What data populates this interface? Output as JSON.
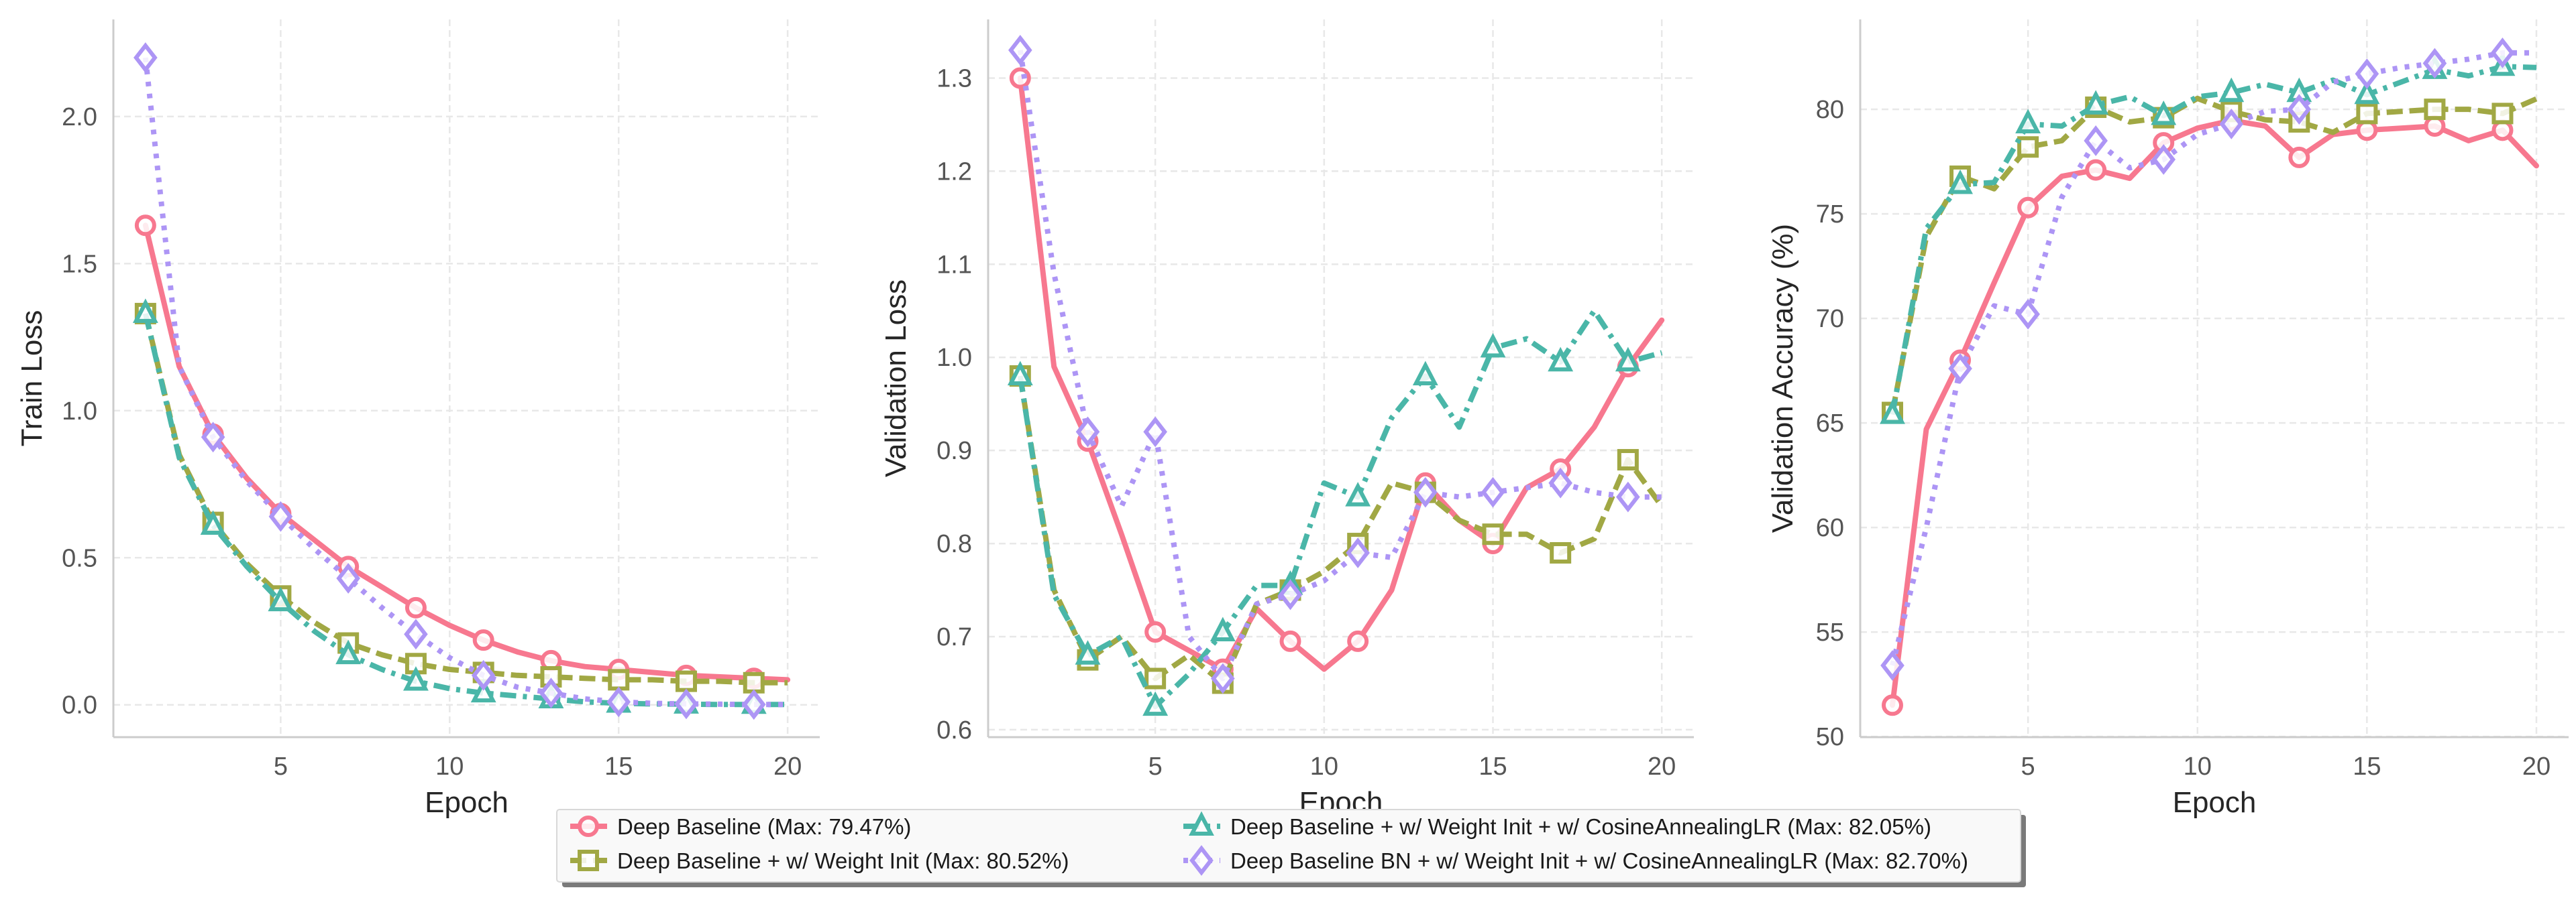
{
  "chart_data": [
    {
      "type": "line",
      "xlabel": "Epoch",
      "ylabel": "Train Loss",
      "xlim": [
        0.05,
        20.95
      ],
      "ylim": [
        -0.11,
        2.33
      ],
      "xticks": [
        5,
        10,
        15,
        20
      ],
      "yticks": [
        0.0,
        0.5,
        1.0,
        1.5,
        2.0
      ],
      "ytick_labels": [
        "0.0",
        "0.5",
        "1.0",
        "1.5",
        "2.0"
      ],
      "grid": true,
      "x": [
        1,
        2,
        3,
        4,
        5,
        6,
        7,
        8,
        9,
        10,
        11,
        12,
        13,
        14,
        15,
        16,
        17,
        18,
        19,
        20
      ],
      "series": [
        {
          "name": "Deep Baseline",
          "values": [
            1.63,
            1.15,
            0.92,
            0.77,
            0.65,
            0.56,
            0.47,
            0.4,
            0.33,
            0.27,
            0.22,
            0.18,
            0.15,
            0.13,
            0.12,
            0.11,
            0.1,
            0.095,
            0.09,
            0.085
          ]
        },
        {
          "name": "Deep Baseline + w/ Weight Init",
          "values": [
            1.33,
            0.85,
            0.62,
            0.48,
            0.37,
            0.28,
            0.21,
            0.17,
            0.14,
            0.12,
            0.11,
            0.1,
            0.095,
            0.09,
            0.085,
            0.085,
            0.08,
            0.08,
            0.075,
            0.075
          ]
        },
        {
          "name": "Deep Baseline + w/ Weight Init + w/ CosineAnnealingLR",
          "values": [
            1.33,
            0.84,
            0.61,
            0.47,
            0.35,
            0.25,
            0.17,
            0.12,
            0.08,
            0.055,
            0.04,
            0.03,
            0.02,
            0.01,
            0.005,
            0.003,
            0.002,
            0.001,
            0.001,
            0.001
          ]
        },
        {
          "name": "Deep Baseline BN + w/ Weight Init + w/ CosineAnnealingLR",
          "values": [
            2.2,
            1.15,
            0.91,
            0.76,
            0.64,
            0.53,
            0.43,
            0.33,
            0.24,
            0.16,
            0.1,
            0.06,
            0.04,
            0.02,
            0.01,
            0.005,
            0.003,
            0.002,
            0.001,
            0.001
          ]
        }
      ]
    },
    {
      "type": "line",
      "xlabel": "Epoch",
      "ylabel": "Validation Loss",
      "xlim": [
        0.05,
        20.95
      ],
      "ylim": [
        0.592,
        1.363
      ],
      "xticks": [
        5,
        10,
        15,
        20
      ],
      "yticks": [
        0.6,
        0.7,
        0.8,
        0.9,
        1.0,
        1.1,
        1.2,
        1.3
      ],
      "ytick_labels": [
        "0.6",
        "0.7",
        "0.8",
        "0.9",
        "1.0",
        "1.1",
        "1.2",
        "1.3"
      ],
      "grid": true,
      "x": [
        1,
        2,
        3,
        4,
        5,
        6,
        7,
        8,
        9,
        10,
        11,
        12,
        13,
        14,
        15,
        16,
        17,
        18,
        19,
        20
      ],
      "series": [
        {
          "name": "Deep Baseline",
          "values": [
            1.3,
            0.99,
            0.91,
            0.81,
            0.705,
            0.685,
            0.665,
            0.73,
            0.695,
            0.665,
            0.695,
            0.75,
            0.865,
            0.825,
            0.8,
            0.86,
            0.88,
            0.925,
            0.99,
            1.04
          ]
        },
        {
          "name": "Deep Baseline + w/ Weight Init",
          "values": [
            0.98,
            0.75,
            0.675,
            0.7,
            0.655,
            0.68,
            0.65,
            0.735,
            0.75,
            0.77,
            0.8,
            0.865,
            0.855,
            0.825,
            0.81,
            0.81,
            0.79,
            0.805,
            0.89,
            0.84
          ]
        },
        {
          "name": "Deep Baseline + w/ Weight Init + w/ CosineAnnealingLR",
          "values": [
            0.98,
            0.745,
            0.68,
            0.7,
            0.625,
            0.66,
            0.705,
            0.755,
            0.755,
            0.865,
            0.85,
            0.935,
            0.98,
            0.925,
            1.01,
            1.02,
            0.995,
            1.05,
            0.995,
            1.005
          ]
        },
        {
          "name": "Deep Baseline BN + w/ Weight Init + w/ CosineAnnealingLR",
          "values": [
            1.33,
            1.09,
            0.92,
            0.84,
            0.92,
            0.7,
            0.655,
            0.735,
            0.745,
            0.76,
            0.79,
            0.785,
            0.855,
            0.85,
            0.855,
            0.86,
            0.865,
            0.855,
            0.85,
            0.85
          ]
        }
      ]
    },
    {
      "type": "line",
      "xlabel": "Epoch",
      "ylabel": "Validation Accuracy (%)",
      "xlim": [
        0.05,
        20.95
      ],
      "ylim": [
        49.97,
        84.3
      ],
      "xticks": [
        5,
        10,
        15,
        20
      ],
      "yticks": [
        50,
        55,
        60,
        65,
        70,
        75,
        80
      ],
      "ytick_labels": [
        "50",
        "55",
        "60",
        "65",
        "70",
        "75",
        "80"
      ],
      "grid": true,
      "x": [
        1,
        2,
        3,
        4,
        5,
        6,
        7,
        8,
        9,
        10,
        11,
        12,
        13,
        14,
        15,
        16,
        17,
        18,
        19,
        20
      ],
      "series": [
        {
          "name": "Deep Baseline",
          "values": [
            51.5,
            64.7,
            68.0,
            71.7,
            75.3,
            76.8,
            77.1,
            76.7,
            78.4,
            79.1,
            79.47,
            79.2,
            77.7,
            78.8,
            79.0,
            79.1,
            79.2,
            78.5,
            79.0,
            77.3
          ]
        },
        {
          "name": "Deep Baseline + w/ Weight Init",
          "values": [
            65.5,
            73.9,
            76.8,
            76.2,
            78.2,
            78.5,
            80.1,
            79.4,
            79.6,
            80.52,
            79.9,
            79.5,
            79.4,
            78.9,
            79.8,
            79.9,
            80.0,
            80.0,
            79.8,
            80.5
          ]
        },
        {
          "name": "Deep Baseline + w/ Weight Init + w/ CosineAnnealingLR",
          "values": [
            65.4,
            74.3,
            76.4,
            76.5,
            79.3,
            79.2,
            80.2,
            80.6,
            79.7,
            80.6,
            80.8,
            81.2,
            80.8,
            81.4,
            80.7,
            81.3,
            81.9,
            81.6,
            82.05,
            82.0
          ]
        },
        {
          "name": "Deep Baseline BN + w/ Weight Init + w/ CosineAnnealingLR",
          "values": [
            53.4,
            60.0,
            67.6,
            70.6,
            70.2,
            75.8,
            78.5,
            77.2,
            77.6,
            78.8,
            79.3,
            79.9,
            80.0,
            81.3,
            81.7,
            82.0,
            82.2,
            82.4,
            82.7,
            82.7
          ]
        }
      ]
    }
  ],
  "series_styles": [
    {
      "color": "#f7788f",
      "dash": "solid",
      "marker": "circle"
    },
    {
      "color": "#a1a844",
      "dash": "dashed",
      "marker": "square"
    },
    {
      "color": "#4ab6a8",
      "dash": "dashdot",
      "marker": "triangle"
    },
    {
      "color": "#ad95f5",
      "dash": "dotted",
      "marker": "diamond"
    }
  ],
  "legend": {
    "placement": "bottom-center",
    "entries": [
      "Deep Baseline (Max: 79.47%)",
      "Deep Baseline + w/ Weight Init (Max: 80.52%)",
      "Deep Baseline + w/ Weight Init + w/ CosineAnnealingLR (Max: 82.05%)",
      "Deep Baseline BN + w/ Weight Init + w/ CosineAnnealingLR (Max: 82.70%)"
    ]
  }
}
